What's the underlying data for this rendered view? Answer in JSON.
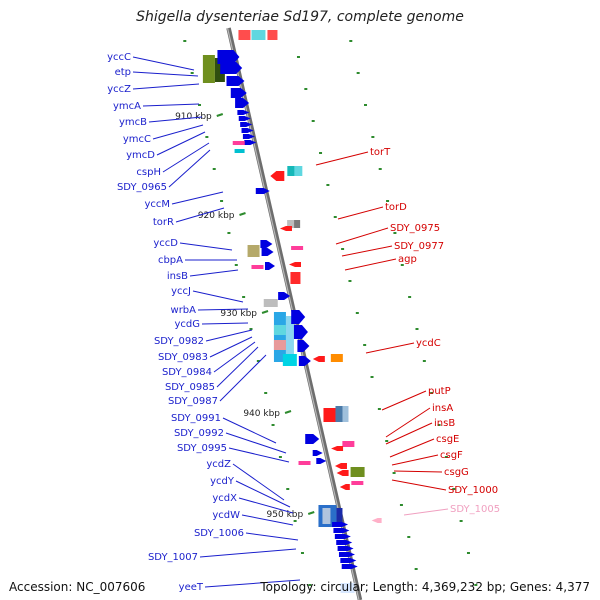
{
  "title": "Shigella dysenteriae Sd197, complete genome",
  "accession": "Accession: NC_007606",
  "topology": "Topology: circular; Length: 4,369,232 bp; Genes: 4,377",
  "ticks": [
    "910 kbp",
    "920 kbp",
    "930 kbp",
    "940 kbp",
    "950 kbp"
  ],
  "colors": {
    "forward_label": "#1a1fcc",
    "reverse_label": "#d40000",
    "pseudo_label": "#f0a0c0",
    "backbone": "#888888"
  },
  "left_labels": [
    "yccC",
    "etp",
    "yccZ",
    "ymcA",
    "ymcB",
    "ymcC",
    "ymcD",
    "cspH",
    "SDY_0965",
    "yccM",
    "torR",
    "yccD",
    "cbpA",
    "insB",
    "yccJ",
    "wrbA",
    "ycdG",
    "SDY_0982",
    "SDY_0983",
    "SDY_0984",
    "SDY_0985",
    "SDY_0987",
    "SDY_0991",
    "SDY_0992",
    "SDY_0995",
    "ycdZ",
    "ycdY",
    "ycdX",
    "ycdW",
    "SDY_1006",
    "SDY_1007",
    "yeeT"
  ],
  "right_labels": [
    "torT",
    "torD",
    "SDY_0975",
    "SDY_0977",
    "agp",
    "ycdC",
    "putP",
    "insA",
    "insB",
    "csgE",
    "csgF",
    "csgG",
    "SDY_1000",
    "SDY_1005"
  ]
}
